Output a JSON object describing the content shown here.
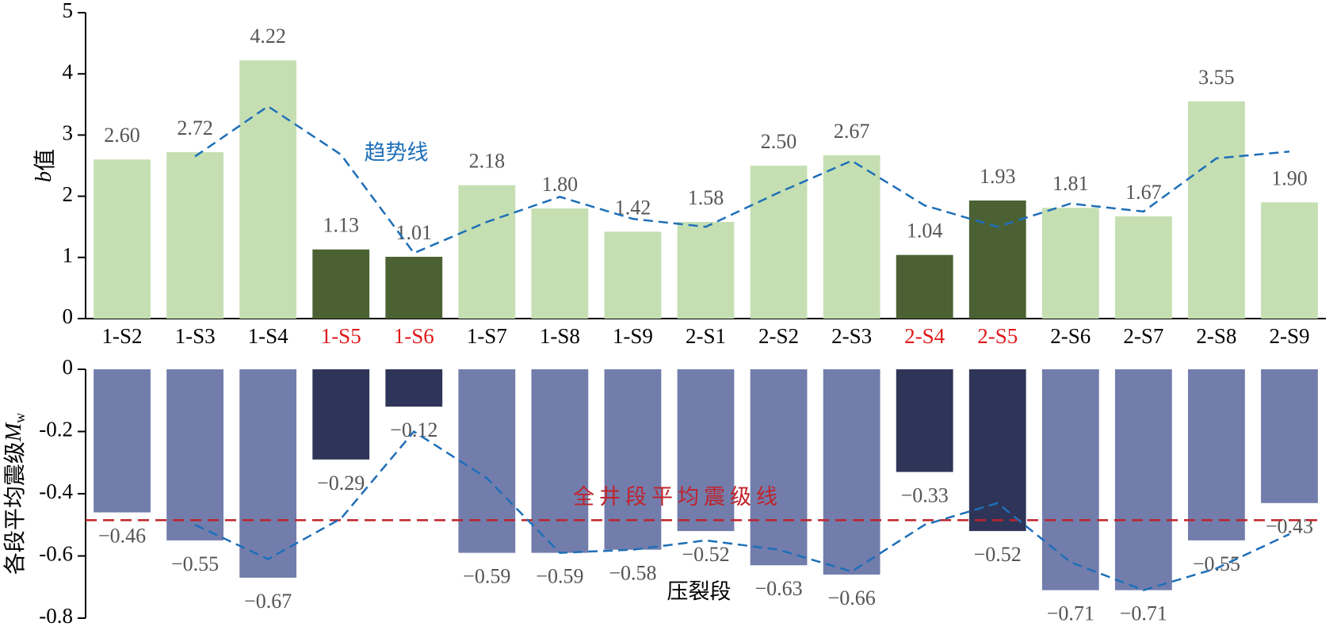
{
  "chart_data": [
    {
      "type": "bar",
      "ylabel_var": "b",
      "ylabel": "值",
      "categories": [
        "1-S2",
        "1-S3",
        "1-S4",
        "1-S5",
        "1-S6",
        "1-S7",
        "1-S8",
        "1-S9",
        "2-S1",
        "2-S2",
        "2-S3",
        "2-S4",
        "2-S5",
        "2-S6",
        "2-S7",
        "2-S8",
        "2-S9"
      ],
      "category_colors": [
        "#000000",
        "#000000",
        "#000000",
        "#e0191b",
        "#e0191b",
        "#000000",
        "#000000",
        "#000000",
        "#000000",
        "#000000",
        "#000000",
        "#e0191b",
        "#e0191b",
        "#000000",
        "#000000",
        "#000000",
        "#000000"
      ],
      "values": [
        2.6,
        2.72,
        4.22,
        1.13,
        1.01,
        2.18,
        1.8,
        1.42,
        1.58,
        2.5,
        2.67,
        1.04,
        1.93,
        1.81,
        1.67,
        3.55,
        1.9
      ],
      "value_labels": [
        "2.60",
        "2.72",
        "4.22",
        "1.13",
        "1.01",
        "2.18",
        "1.80",
        "1.42",
        "1.58",
        "2.50",
        "2.67",
        "1.04",
        "1.93",
        "1.81",
        "1.67",
        "3.55",
        "1.90"
      ],
      "colors": [
        "#c5dfb2",
        "#c5dfb2",
        "#c5dfb2",
        "#4b6133",
        "#4b6133",
        "#c5dfb2",
        "#c5dfb2",
        "#c5dfb2",
        "#c5dfb2",
        "#c5dfb2",
        "#c5dfb2",
        "#4b6133",
        "#4b6133",
        "#c5dfb2",
        "#c5dfb2",
        "#c5dfb2",
        "#c5dfb2"
      ],
      "trend": {
        "name": "趋势线",
        "color": "#1e6fb8",
        "values": [
          null,
          2.65,
          3.47,
          2.68,
          1.07,
          1.58,
          1.99,
          1.63,
          1.5,
          2.06,
          2.58,
          1.85,
          1.5,
          1.88,
          1.75,
          2.62,
          2.73
        ]
      },
      "ylim": [
        0,
        5
      ],
      "yticks": [
        0,
        1,
        2,
        3,
        4,
        5
      ]
    },
    {
      "type": "bar",
      "ylabel": "各段平均震级",
      "ylabel_var": "M",
      "ylabel_sub": "w",
      "xlabel": "压裂段",
      "values": [
        -0.46,
        -0.55,
        -0.67,
        -0.29,
        -0.12,
        -0.59,
        -0.59,
        -0.58,
        -0.52,
        -0.63,
        -0.66,
        -0.33,
        -0.52,
        -0.71,
        -0.71,
        -0.55,
        -0.43
      ],
      "value_labels": [
        "−0.46",
        "−0.55",
        "−0.67",
        "−0.29",
        "−0.12",
        "−0.59",
        "−0.59",
        "−0.58",
        "−0.52",
        "−0.63",
        "−0.66",
        "−0.33",
        "−0.52",
        "−0.71",
        "−0.71",
        "−0.55",
        "−0.43"
      ],
      "colors": [
        "#727dac",
        "#727dac",
        "#727dac",
        "#2f3558",
        "#2f3558",
        "#727dac",
        "#727dac",
        "#727dac",
        "#727dac",
        "#727dac",
        "#727dac",
        "#2f3558",
        "#2f3558",
        "#727dac",
        "#727dac",
        "#727dac",
        "#727dac"
      ],
      "trend": {
        "color": "#1e6fb8",
        "values": [
          null,
          -0.5,
          -0.61,
          -0.48,
          -0.2,
          -0.35,
          -0.59,
          -0.58,
          -0.55,
          -0.58,
          -0.65,
          -0.5,
          -0.43,
          -0.62,
          -0.71,
          -0.64,
          -0.53
        ]
      },
      "hline": {
        "value": -0.485,
        "label": "全井段平均震级线",
        "color": "#c0232a"
      },
      "ylim": [
        -0.8,
        0
      ],
      "yticks": [
        0,
        -0.2,
        -0.4,
        -0.6,
        -0.8
      ]
    }
  ]
}
